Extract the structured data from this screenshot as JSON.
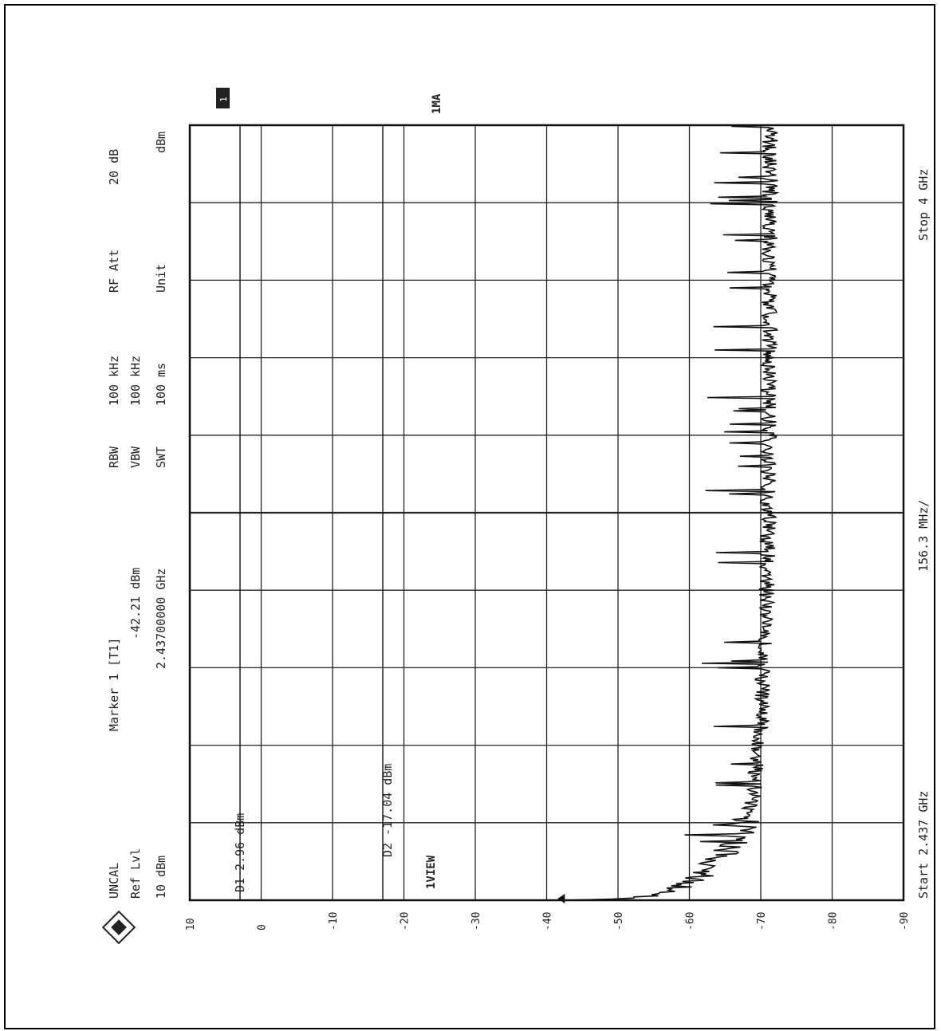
{
  "header": {
    "uncal": "UNCAL",
    "ref_lvl_label": "Ref Lvl",
    "ref_lvl_value": "10 dBm",
    "marker_title": "Marker 1 [T1]",
    "marker_level": "-42.21 dBm",
    "marker_freq": "2.43700000 GHz",
    "rbw_label": "RBW",
    "vbw_label": "VBW",
    "swt_label": "SWT",
    "rbw_value": "100 kHz",
    "vbw_value": "100 kHz",
    "swt_value": "100 ms",
    "rf_att_label": "RF Att",
    "rf_att_value": "20 dB",
    "unit_label": "Unit",
    "unit_value": "dBm"
  },
  "footer": {
    "start": "Start 2.437 GHz",
    "span": "156.3 MHz/",
    "stop": "Stop 4 GHz"
  },
  "annotations": {
    "trace_mode": "1MA",
    "view": "1VIEW",
    "marker_badge": "1",
    "d1_text": "D1 2.96 dBm",
    "d2_text": "D2 -17.04 dBm"
  },
  "chart_data": {
    "type": "line",
    "orientation": "rotated 90 degrees clockwise (frequency runs top to bottom, level runs right to left)",
    "xlabel": "",
    "ylabel": "",
    "xlim": [
      2.437,
      4.0
    ],
    "ylim": [
      -90,
      10
    ],
    "y_ticks": [
      "10",
      "0",
      "-10",
      "-20",
      "-30",
      "-40",
      "-50",
      "-60",
      "-70",
      "-80",
      "-90"
    ],
    "grid": true,
    "display_lines": [
      {
        "name": "D1",
        "value": 2.96
      },
      {
        "name": "D2",
        "value": -17.04
      }
    ],
    "marker": {
      "x": 2.437,
      "y": -42.21
    },
    "series": [
      {
        "x": [
          2.437,
          2.441,
          2.446,
          2.452,
          2.458,
          2.465,
          2.472,
          2.48,
          2.49,
          2.5,
          2.51,
          2.52,
          2.53,
          2.54,
          2.55,
          2.56,
          2.57,
          2.58,
          2.6,
          2.62,
          2.65,
          2.68,
          2.72,
          2.76,
          2.8,
          2.85,
          2.9,
          2.95,
          3.0,
          3.05,
          3.1,
          3.2,
          3.3,
          3.4,
          3.5,
          3.6,
          3.7,
          3.8,
          3.9,
          4.0
        ],
        "values": [
          -42.2,
          -51,
          -55,
          -57,
          -58,
          -59,
          -60,
          -61,
          -62,
          -62.5,
          -63,
          -64,
          -65,
          -65.5,
          -66,
          -66.5,
          -67,
          -67.5,
          -68,
          -68.5,
          -69,
          -69.2,
          -69.5,
          -69.8,
          -70,
          -70.2,
          -70.3,
          -70.5,
          -70.6,
          -70.8,
          -70.9,
          -71,
          -71,
          -71.1,
          -71.1,
          -71.2,
          -71.2,
          -71.3,
          -71.3,
          -71.3
        ]
      }
    ]
  }
}
